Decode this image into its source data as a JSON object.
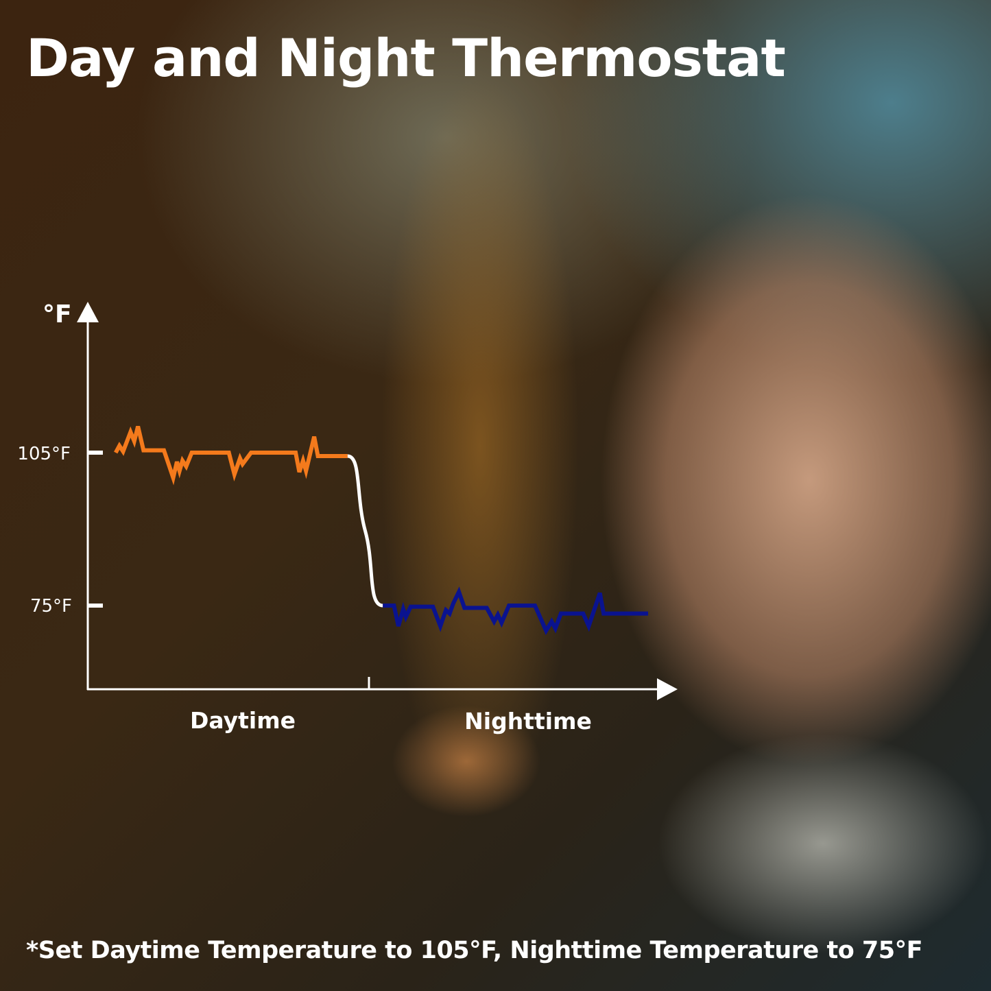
{
  "title": "Day and Night Thermostat",
  "footnote": "*Set Daytime Temperature to 105°F, Nighttime Temperature to 75°F",
  "chart_data": {
    "type": "line",
    "ylabel": "°F",
    "yticks": [
      "105°F",
      "75°F"
    ],
    "categories": [
      "Daytime",
      "Nighttime"
    ],
    "series": [
      {
        "period": "Daytime",
        "setpoint": 105,
        "color": "#f47a1c"
      },
      {
        "period": "Nighttime",
        "setpoint": 75,
        "color": "#0a138f"
      }
    ],
    "transition_color": "#ffffff",
    "grid": false
  }
}
